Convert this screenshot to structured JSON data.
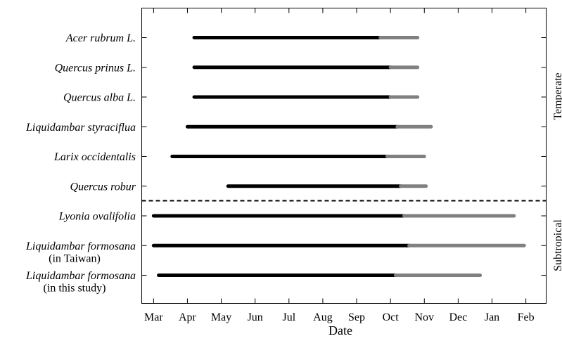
{
  "chart_data": {
    "type": "range-bar",
    "xlabel": "Date",
    "x_ticks": [
      "Mar",
      "Apr",
      "May",
      "Jun",
      "Jul",
      "Aug",
      "Sep",
      "Oct",
      "Nov",
      "Dec",
      "Jan",
      "Feb"
    ],
    "x_range": [
      -0.35,
      11.6
    ],
    "grid": false,
    "segment_colors": {
      "primary": "#000000",
      "extension": "#808080"
    },
    "groups": [
      {
        "label": "Temperate",
        "rows": [
          0,
          1,
          2,
          3,
          4,
          5
        ]
      },
      {
        "label": "Subtropical",
        "rows": [
          6,
          7,
          8
        ]
      }
    ],
    "rows": [
      {
        "label": "Acer rubrum L.",
        "note": "",
        "start": 1.2,
        "black_end": 6.7,
        "end": 7.8
      },
      {
        "label": "Quercus prinus L.",
        "note": "",
        "start": 1.2,
        "black_end": 7.0,
        "end": 7.8
      },
      {
        "label": "Quercus alba L.",
        "note": "",
        "start": 1.2,
        "black_end": 7.0,
        "end": 7.8
      },
      {
        "label": "Liquidambar styraciflua",
        "note": "",
        "start": 1.0,
        "black_end": 7.2,
        "end": 8.2
      },
      {
        "label": "Larix occidentalis",
        "note": "",
        "start": 0.55,
        "black_end": 6.9,
        "end": 8.0
      },
      {
        "label": "Quercus robur",
        "note": "",
        "start": 2.2,
        "black_end": 7.3,
        "end": 8.05
      },
      {
        "label": "Lyonia ovalifolia",
        "note": "",
        "start": 0.0,
        "black_end": 7.4,
        "end": 10.65
      },
      {
        "label": "Liquidambar formosana",
        "note": "(in Taiwan)",
        "start": 0.0,
        "black_end": 7.55,
        "end": 10.95
      },
      {
        "label": "Liquidambar formosana",
        "note": "(in this study)",
        "start": 0.15,
        "black_end": 7.15,
        "end": 9.65
      }
    ]
  }
}
